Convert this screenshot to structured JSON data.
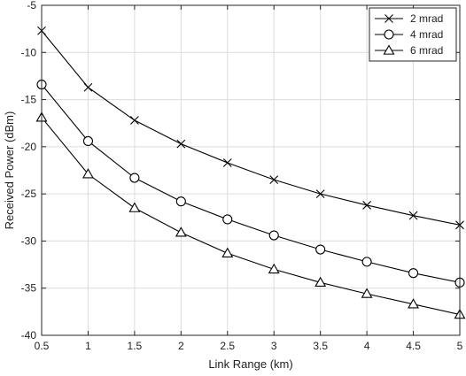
{
  "chart_data": {
    "type": "line",
    "xlabel": "Link Range (km)",
    "ylabel": "Received Power (dBm)",
    "xlim": [
      0.5,
      5
    ],
    "ylim": [
      -40,
      -5
    ],
    "x_ticks": [
      0.5,
      1,
      1.5,
      2,
      2.5,
      3,
      3.5,
      4,
      4.5,
      5
    ],
    "x_tick_labels": [
      "0.5",
      "1",
      "1.5",
      "2",
      "2.5",
      "3",
      "3.5",
      "4",
      "4.5",
      "5"
    ],
    "y_ticks": [
      -5,
      -10,
      -15,
      -20,
      -25,
      -30,
      -35,
      -40
    ],
    "y_tick_labels": [
      "-5",
      "-10",
      "-15",
      "-20",
      "-25",
      "-30",
      "-35",
      "-40"
    ],
    "grid": true,
    "legend_position": "top-right",
    "x": [
      0.5,
      1,
      1.5,
      2,
      2.5,
      3,
      3.5,
      4,
      4.5,
      5
    ],
    "series": [
      {
        "name": "2 mrad",
        "marker": "x",
        "values": [
          -7.7,
          -13.7,
          -17.2,
          -19.7,
          -21.7,
          -23.5,
          -25.0,
          -26.2,
          -27.3,
          -28.3
        ]
      },
      {
        "name": "4 mrad",
        "marker": "circle",
        "values": [
          -13.4,
          -19.4,
          -23.3,
          -25.8,
          -27.7,
          -29.4,
          -30.9,
          -32.2,
          -33.4,
          -34.4
        ]
      },
      {
        "name": "6 mrad",
        "marker": "triangle",
        "values": [
          -16.9,
          -22.9,
          -26.5,
          -29.1,
          -31.3,
          -33.0,
          -34.4,
          -35.6,
          -36.7,
          -37.8
        ]
      }
    ]
  }
}
